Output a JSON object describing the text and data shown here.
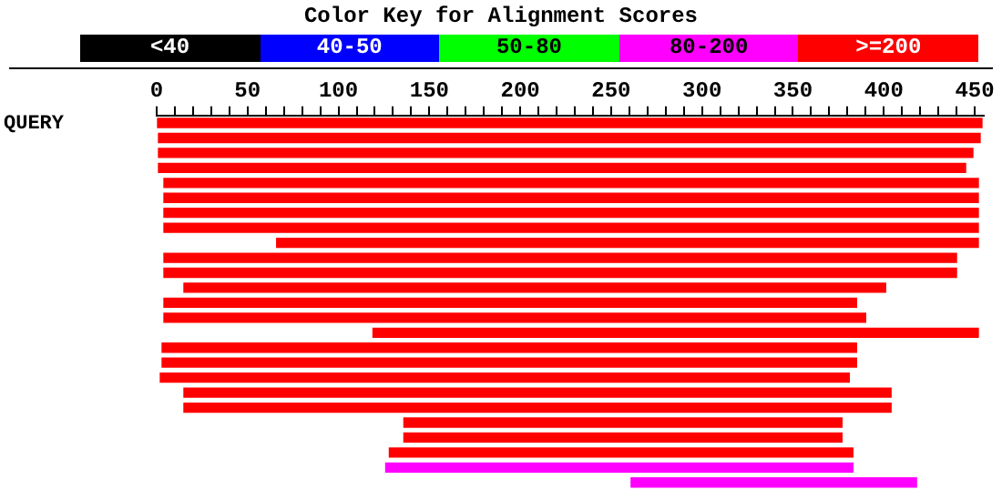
{
  "chart_data": [
    {
      "type": "other",
      "title": "Color Key for Alignment Scores",
      "categories": [
        "<40",
        "40-50",
        "50-80",
        "80-200",
        ">=200"
      ],
      "colors": [
        "#000000",
        "#0000ff",
        "#00ff00",
        "#ff00ff",
        "#ff0000"
      ]
    },
    {
      "type": "bar",
      "orientation": "horizontal",
      "tick_labels": "x",
      "annotations": [
        "QUERY"
      ],
      "categories": [
        null,
        null,
        null,
        null,
        null,
        null,
        null,
        null,
        null,
        null,
        null,
        null,
        null,
        null,
        null,
        null,
        null,
        null,
        null,
        null,
        null,
        null,
        null,
        null,
        null
      ],
      "base": [
        0,
        1,
        1,
        1,
        4,
        4,
        4,
        4,
        66,
        4,
        4,
        15,
        4,
        4,
        119,
        3,
        3,
        2,
        15,
        15,
        136,
        136,
        128,
        126,
        261
      ],
      "values": [
        454,
        452,
        448,
        444,
        448,
        448,
        448,
        448,
        386,
        436,
        436,
        386,
        381,
        386,
        333,
        382,
        382,
        379,
        389,
        389,
        241,
        241,
        255,
        257,
        157
      ],
      "colors": [
        "#ff0000",
        "#ff0000",
        "#ff0000",
        "#ff0000",
        "#ff0000",
        "#ff0000",
        "#ff0000",
        "#ff0000",
        "#ff0000",
        "#ff0000",
        "#ff0000",
        "#ff0000",
        "#ff0000",
        "#ff0000",
        "#ff0000",
        "#ff0000",
        "#ff0000",
        "#ff0000",
        "#ff0000",
        "#ff0000",
        "#ff0000",
        "#ff0000",
        "#ff0000",
        "#ff00ff",
        "#ff00ff"
      ],
      "xlim": [
        0,
        455
      ],
      "xticks": [
        0,
        {
          "value": 10,
          "label": null
        },
        {
          "value": 20,
          "label": null
        },
        {
          "value": 30,
          "label": null
        },
        {
          "value": 40,
          "label": null
        },
        50,
        {
          "value": 60,
          "label": null
        },
        {
          "value": 70,
          "label": null
        },
        {
          "value": 80,
          "label": null
        },
        {
          "value": 90,
          "label": null
        },
        100,
        {
          "value": 110,
          "label": null
        },
        {
          "value": 120,
          "label": null
        },
        {
          "value": 130,
          "label": null
        },
        {
          "value": 140,
          "label": null
        },
        150,
        {
          "value": 160,
          "label": null
        },
        {
          "value": 170,
          "label": null
        },
        {
          "value": 180,
          "label": null
        },
        {
          "value": 190,
          "label": null
        },
        200,
        {
          "value": 210,
          "label": null
        },
        {
          "value": 220,
          "label": null
        },
        {
          "value": 230,
          "label": null
        },
        {
          "value": 240,
          "label": null
        },
        250,
        {
          "value": 260,
          "label": null
        },
        {
          "value": 270,
          "label": null
        },
        {
          "value": 280,
          "label": null
        },
        {
          "value": 290,
          "label": null
        },
        300,
        {
          "value": 310,
          "label": null
        },
        {
          "value": 320,
          "label": null
        },
        {
          "value": 330,
          "label": null
        },
        {
          "value": 340,
          "label": null
        },
        350,
        {
          "value": 360,
          "label": null
        },
        {
          "value": 370,
          "label": null
        },
        {
          "value": 380,
          "label": null
        },
        {
          "value": 390,
          "label": null
        },
        400,
        {
          "value": 410,
          "label": null
        },
        {
          "value": 420,
          "label": null
        },
        {
          "value": 430,
          "label": null
        },
        {
          "value": 440,
          "label": null
        },
        450
      ]
    }
  ]
}
